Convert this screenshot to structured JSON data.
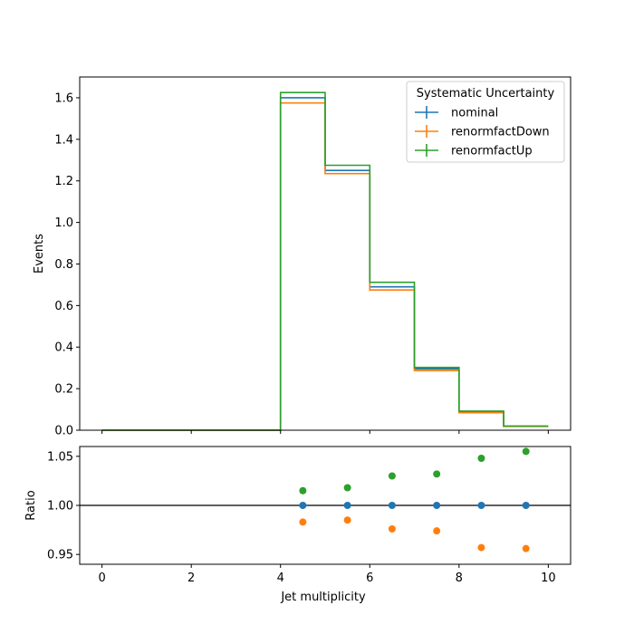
{
  "chart_data": [
    {
      "type": "step",
      "title": "",
      "xlabel": "",
      "ylabel": "Events",
      "xlim": [
        -0.5,
        10.5
      ],
      "ylim": [
        0,
        1.7
      ],
      "xticks": [
        "0",
        "2",
        "4",
        "6",
        "8",
        "10"
      ],
      "yticks": [
        "0.0",
        "0.2",
        "0.4",
        "0.6",
        "0.8",
        "1.0",
        "1.2",
        "1.4",
        "1.6"
      ],
      "bin_edges": [
        0,
        1,
        2,
        3,
        4,
        5,
        6,
        7,
        8,
        9,
        10
      ],
      "grid": false,
      "legend": {
        "title": "Systematic Uncertainty",
        "placement": "top-right"
      },
      "series": [
        {
          "name": "nominal",
          "color": "#1f77b4",
          "values": [
            0,
            0,
            0,
            0,
            1.6,
            1.25,
            0.69,
            0.295,
            0.088,
            0.019
          ]
        },
        {
          "name": "renormfactDown",
          "color": "#ff7f0e",
          "values": [
            0,
            0,
            0,
            0,
            1.575,
            1.235,
            0.675,
            0.287,
            0.084,
            0.018
          ]
        },
        {
          "name": "renormfactUp",
          "color": "#2ca02c",
          "values": [
            0,
            0,
            0,
            0,
            1.625,
            1.275,
            0.712,
            0.302,
            0.092,
            0.02
          ]
        }
      ]
    },
    {
      "type": "scatter",
      "title": "",
      "xlabel": "Jet multiplicity",
      "ylabel": "Ratio",
      "xlim": [
        -0.5,
        10.5
      ],
      "ylim": [
        0.94,
        1.06
      ],
      "xticks": [
        "0",
        "2",
        "4",
        "6",
        "8",
        "10"
      ],
      "yticks": [
        "0.95",
        "1.00",
        "1.05"
      ],
      "reference_line": 1.0,
      "x": [
        4.5,
        5.5,
        6.5,
        7.5,
        8.5,
        9.5
      ],
      "series": [
        {
          "color": "#1f77b4",
          "values": [
            1.0,
            1.0,
            1.0,
            1.0,
            1.0,
            1.0
          ]
        },
        {
          "color": "#ff7f0e",
          "values": [
            0.983,
            0.985,
            0.976,
            0.974,
            0.957,
            0.956
          ]
        },
        {
          "color": "#2ca02c",
          "values": [
            1.015,
            1.018,
            1.03,
            1.032,
            1.048,
            1.055
          ]
        }
      ]
    }
  ]
}
